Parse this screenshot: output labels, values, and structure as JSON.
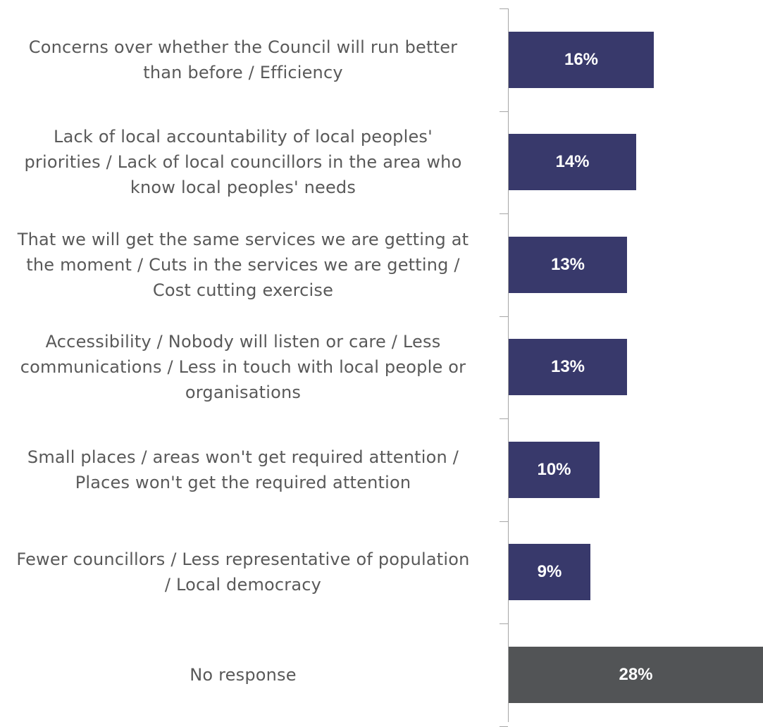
{
  "chart_data": {
    "type": "bar",
    "orientation": "horizontal",
    "categories": [
      [
        "Concerns over whether the Council will run better",
        "than before / Efficiency"
      ],
      [
        "Lack of local accountability of local peoples'",
        "priorities / Lack of local councillors in the area who",
        "know local peoples' needs"
      ],
      [
        "That we will get the same services we are getting at",
        "the moment / Cuts in the services we are getting /",
        "Cost cutting exercise"
      ],
      [
        "Accessibility / Nobody will listen or care / Less",
        "communications / Less in touch with local people or",
        "organisations"
      ],
      [
        "Small places / areas won't get required attention /",
        "Places won't get the required attention"
      ],
      [
        "Fewer councillors / Less representative of population",
        "/ Local democracy"
      ],
      [
        "No response"
      ]
    ],
    "values": [
      16,
      14,
      13,
      13,
      10,
      9,
      28
    ],
    "value_labels": [
      "16%",
      "14%",
      "13%",
      "13%",
      "10%",
      "9%",
      "28%"
    ],
    "unit": "%",
    "xlim": [
      0,
      28
    ],
    "colors": [
      "#38396b",
      "#38396b",
      "#38396b",
      "#38396b",
      "#38396b",
      "#38396b",
      "#525456"
    ],
    "title": "",
    "xlabel": "",
    "ylabel": "",
    "grid": false,
    "legend": "none"
  }
}
